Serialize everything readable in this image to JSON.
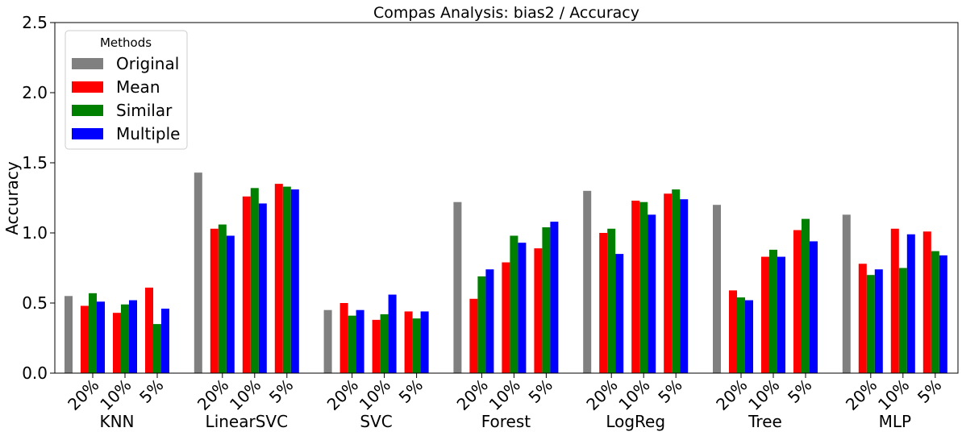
{
  "chart_data": {
    "type": "bar",
    "title": "Compas Analysis: bias2 / Accuracy",
    "xlabel": "",
    "ylabel": "Accuracy",
    "ylim": [
      0,
      2.5
    ],
    "yticks": [
      "0.0",
      "0.5",
      "1.0",
      "1.5",
      "2.0",
      "2.5"
    ],
    "grid": false,
    "legend": {
      "title": "Methods",
      "placement": "top-left",
      "entries": [
        {
          "name": "Original",
          "color": "#808080"
        },
        {
          "name": "Mean",
          "color": "#ff0000"
        },
        {
          "name": "Similar",
          "color": "#008000"
        },
        {
          "name": "Multiple",
          "color": "#0000ff"
        }
      ]
    },
    "missing_rate_labels": [
      "20%",
      "10%",
      "5%"
    ],
    "groups": [
      {
        "name": "KNN",
        "original": 0.55,
        "mean": [
          0.48,
          0.43,
          0.61
        ],
        "similar": [
          0.57,
          0.49,
          0.35
        ],
        "multiple": [
          0.51,
          0.52,
          0.46
        ]
      },
      {
        "name": "LinearSVC",
        "original": 1.43,
        "mean": [
          1.03,
          1.26,
          1.35
        ],
        "similar": [
          1.06,
          1.32,
          1.33
        ],
        "multiple": [
          0.98,
          1.21,
          1.31
        ]
      },
      {
        "name": "SVC",
        "original": 0.45,
        "mean": [
          0.5,
          0.38,
          0.44
        ],
        "similar": [
          0.41,
          0.42,
          0.39
        ],
        "multiple": [
          0.45,
          0.56,
          0.44
        ]
      },
      {
        "name": "Forest",
        "original": 1.22,
        "mean": [
          0.53,
          0.79,
          0.89
        ],
        "similar": [
          0.69,
          0.98,
          1.04
        ],
        "multiple": [
          0.74,
          0.93,
          1.08
        ]
      },
      {
        "name": "LogReg",
        "original": 1.3,
        "mean": [
          1.0,
          1.23,
          1.28
        ],
        "similar": [
          1.03,
          1.22,
          1.31
        ],
        "multiple": [
          0.85,
          1.13,
          1.24
        ]
      },
      {
        "name": "Tree",
        "original": 1.2,
        "mean": [
          0.59,
          0.83,
          1.02
        ],
        "similar": [
          0.54,
          0.88,
          1.1
        ],
        "multiple": [
          0.52,
          0.83,
          0.94
        ]
      },
      {
        "name": "MLP",
        "original": 1.13,
        "mean": [
          0.78,
          1.03,
          1.01
        ],
        "similar": [
          0.7,
          0.75,
          0.87
        ],
        "multiple": [
          0.74,
          0.99,
          0.84
        ]
      }
    ]
  }
}
